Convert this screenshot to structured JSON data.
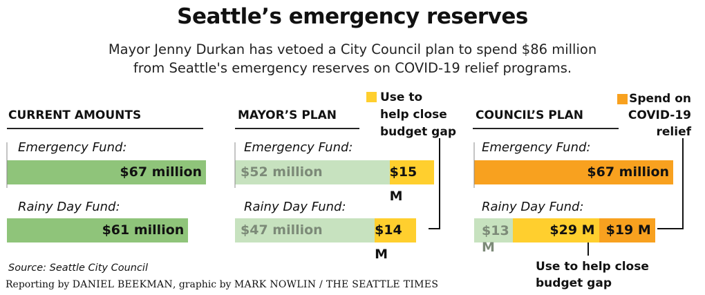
{
  "title": "Seattle’s emergency reserves",
  "subtitle_line1": "Mayor Jenny Durkan has vetoed a City Council plan to spend $86 million",
  "subtitle_line2": "from Seattle's emergency reserves on COVID-19 relief programs.",
  "colors": {
    "green": "#8fc47a",
    "light_green": "#c7e2bf",
    "yellow": "#ffcf2e",
    "orange": "#f8a11f",
    "light_label": "#7c8a78"
  },
  "panels": {
    "current": {
      "heading": "CURRENT AMOUNTS"
    },
    "mayor": {
      "heading": "MAYOR’S PLAN"
    },
    "council": {
      "heading": "COUNCIL’S PLAN"
    }
  },
  "fund_labels": {
    "emergency": "Emergency Fund:",
    "rainy": "Rainy Day Fund:"
  },
  "legend": {
    "budget_gap_line1": "Use to",
    "budget_gap_line2": "help close",
    "budget_gap_line3": "budget gap",
    "covid_line1": "Spend on",
    "covid_line2": "COVID-19",
    "covid_line3": "relief",
    "bottom_line1": "Use to help close",
    "bottom_line2": "budget gap"
  },
  "source": "Source: Seattle City Council",
  "credit": {
    "pre": "Reporting by ",
    "reporter": "DANIEL BEEKMAN",
    "mid": ", graphic by ",
    "artist": "MARK NOWLIN / THE SEATTLE TIMES"
  },
  "chart_data": {
    "type": "bar",
    "units": "million dollars",
    "panels": [
      {
        "name": "CURRENT AMOUNTS",
        "funds": [
          {
            "fund": "Emergency Fund",
            "segments": [
              {
                "value": 67,
                "label": "$67 million",
                "category": "current"
              }
            ]
          },
          {
            "fund": "Rainy Day Fund",
            "segments": [
              {
                "value": 61,
                "label": "$61 million",
                "category": "current"
              }
            ]
          }
        ]
      },
      {
        "name": "MAYOR’S PLAN",
        "funds": [
          {
            "fund": "Emergency Fund",
            "segments": [
              {
                "value": 52,
                "label": "$52 million",
                "category": "remaining"
              },
              {
                "value": 15,
                "label": "$15 M",
                "category": "budget gap"
              }
            ]
          },
          {
            "fund": "Rainy Day Fund",
            "segments": [
              {
                "value": 47,
                "label": "$47 million",
                "category": "remaining"
              },
              {
                "value": 14,
                "label": "$14 M",
                "category": "budget gap"
              }
            ]
          }
        ]
      },
      {
        "name": "COUNCIL’S PLAN",
        "funds": [
          {
            "fund": "Emergency Fund",
            "segments": [
              {
                "value": 67,
                "label": "$67 million",
                "category": "covid relief"
              }
            ]
          },
          {
            "fund": "Rainy Day Fund",
            "segments": [
              {
                "value": 13,
                "label": "$13 M",
                "category": "remaining"
              },
              {
                "value": 29,
                "label": "$29 M",
                "category": "budget gap"
              },
              {
                "value": 19,
                "label": "$19 M",
                "category": "covid relief"
              }
            ]
          }
        ]
      }
    ]
  }
}
